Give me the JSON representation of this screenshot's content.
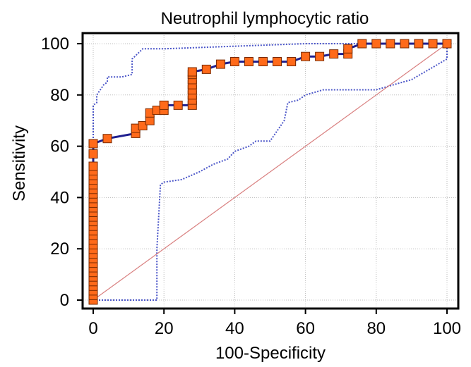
{
  "chart_data": {
    "type": "line",
    "title": "Neutrophil lymphocytic ratio",
    "xlabel": "100-Specificity",
    "ylabel": "Sensitivity",
    "xlim": [
      0,
      100
    ],
    "ylim": [
      0,
      100
    ],
    "xticks": [
      "0",
      "20",
      "40",
      "60",
      "80",
      "100"
    ],
    "yticks": [
      "0",
      "20",
      "40",
      "60",
      "80",
      "100"
    ],
    "grid": true,
    "colors": {
      "roc_line": "#1f1f8f",
      "marker_fill": "#ff6a1a",
      "marker_stroke": "#7a2a00",
      "ci_band": "#4a55c8",
      "reference_line": "#d98080",
      "grid": "#bdbdbd"
    },
    "series": [
      {
        "role": "roc-curve",
        "x": [
          0,
          0,
          0,
          0,
          0,
          0,
          0,
          0,
          0,
          0,
          0,
          0,
          0,
          0,
          0,
          0,
          0,
          0,
          0,
          0,
          0,
          0,
          0,
          0,
          0,
          0,
          0,
          0,
          0,
          0,
          0,
          0,
          0,
          0,
          0,
          0,
          0,
          0,
          0,
          0,
          0,
          0,
          0,
          0,
          0,
          0,
          0,
          0,
          0,
          0,
          0,
          0,
          0,
          0,
          0,
          0,
          4,
          12,
          12,
          14,
          16,
          16,
          18,
          20,
          20,
          24,
          28,
          28,
          28,
          28,
          28,
          28,
          28,
          28,
          32,
          36,
          40,
          44,
          48,
          52,
          56,
          56,
          60,
          64,
          68,
          72,
          72,
          76,
          80,
          84,
          88,
          92,
          96,
          100
        ],
        "y": [
          0,
          1.8,
          3.6,
          5.4,
          7.2,
          9,
          10.8,
          12.6,
          14.4,
          16.2,
          18,
          19.8,
          21.6,
          23.4,
          25.2,
          27,
          28.8,
          30.6,
          32.4,
          34.2,
          36,
          37.8,
          39.6,
          41.4,
          43.2,
          45,
          46.8,
          48.6,
          50.4,
          52.2,
          57,
          61,
          61,
          61,
          61,
          61,
          61,
          61,
          61,
          61,
          61,
          61,
          61,
          61,
          61,
          61,
          61,
          61,
          61,
          61,
          61,
          61,
          61,
          61,
          61,
          61,
          63,
          65,
          67,
          68,
          70,
          73,
          74,
          74,
          76,
          76,
          76,
          78,
          80,
          82,
          84,
          86,
          88,
          89,
          90,
          92,
          93,
          93,
          93,
          93,
          93,
          93,
          95,
          95,
          96,
          96,
          98,
          100,
          100,
          100,
          100,
          100,
          100,
          100
        ]
      },
      {
        "role": "confidence-upper",
        "x": [
          0,
          0,
          1,
          1,
          2,
          3,
          4,
          4,
          8,
          11,
          11,
          14,
          20,
          40,
          60,
          80,
          100,
          100
        ],
        "y": [
          61,
          76,
          77,
          80,
          82,
          84,
          85,
          87,
          87,
          88,
          94,
          98,
          98,
          99,
          100,
          100,
          100,
          100
        ]
      },
      {
        "role": "confidence-lower",
        "x": [
          0,
          18,
          18,
          19,
          20,
          25,
          30,
          34,
          38,
          40,
          44,
          46,
          50,
          54,
          55,
          58,
          60,
          65,
          80,
          85,
          90,
          100,
          100
        ],
        "y": [
          0,
          0,
          20,
          45,
          46,
          47,
          50,
          53,
          55,
          58,
          60,
          62,
          62,
          70,
          77,
          78,
          80,
          82,
          82,
          84,
          86,
          94,
          100
        ]
      },
      {
        "role": "reference-diagonal",
        "x": [
          0,
          100
        ],
        "y": [
          0,
          100
        ]
      }
    ]
  }
}
